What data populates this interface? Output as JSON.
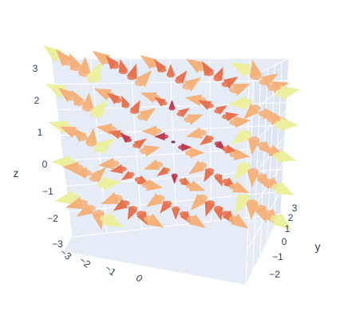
{
  "chart_data": {
    "type": "cone",
    "title": "",
    "colorscale": [
      "#ecef9c",
      "#f5b27b",
      "#e9734e",
      "#c23c4f",
      "#6a1a54"
    ],
    "grid_count": 5,
    "axes": {
      "x": {
        "title": "",
        "range": [
          -3,
          3
        ],
        "ticks": [
          "−3",
          "−2",
          "−1",
          "0"
        ]
      },
      "y": {
        "title": "y",
        "range": [
          -2,
          3
        ],
        "ticks": [
          "−2",
          "−1",
          "0",
          "1",
          "2",
          "3"
        ]
      },
      "z": {
        "title": "z",
        "range": [
          -3,
          3
        ],
        "ticks": [
          "−3",
          "−2",
          "−1",
          "0",
          "1",
          "2",
          "3"
        ]
      }
    },
    "colors": {
      "scene_bg": "#e5ecf6",
      "grid": "#ffffff",
      "text": "#2a3f5f"
    }
  }
}
